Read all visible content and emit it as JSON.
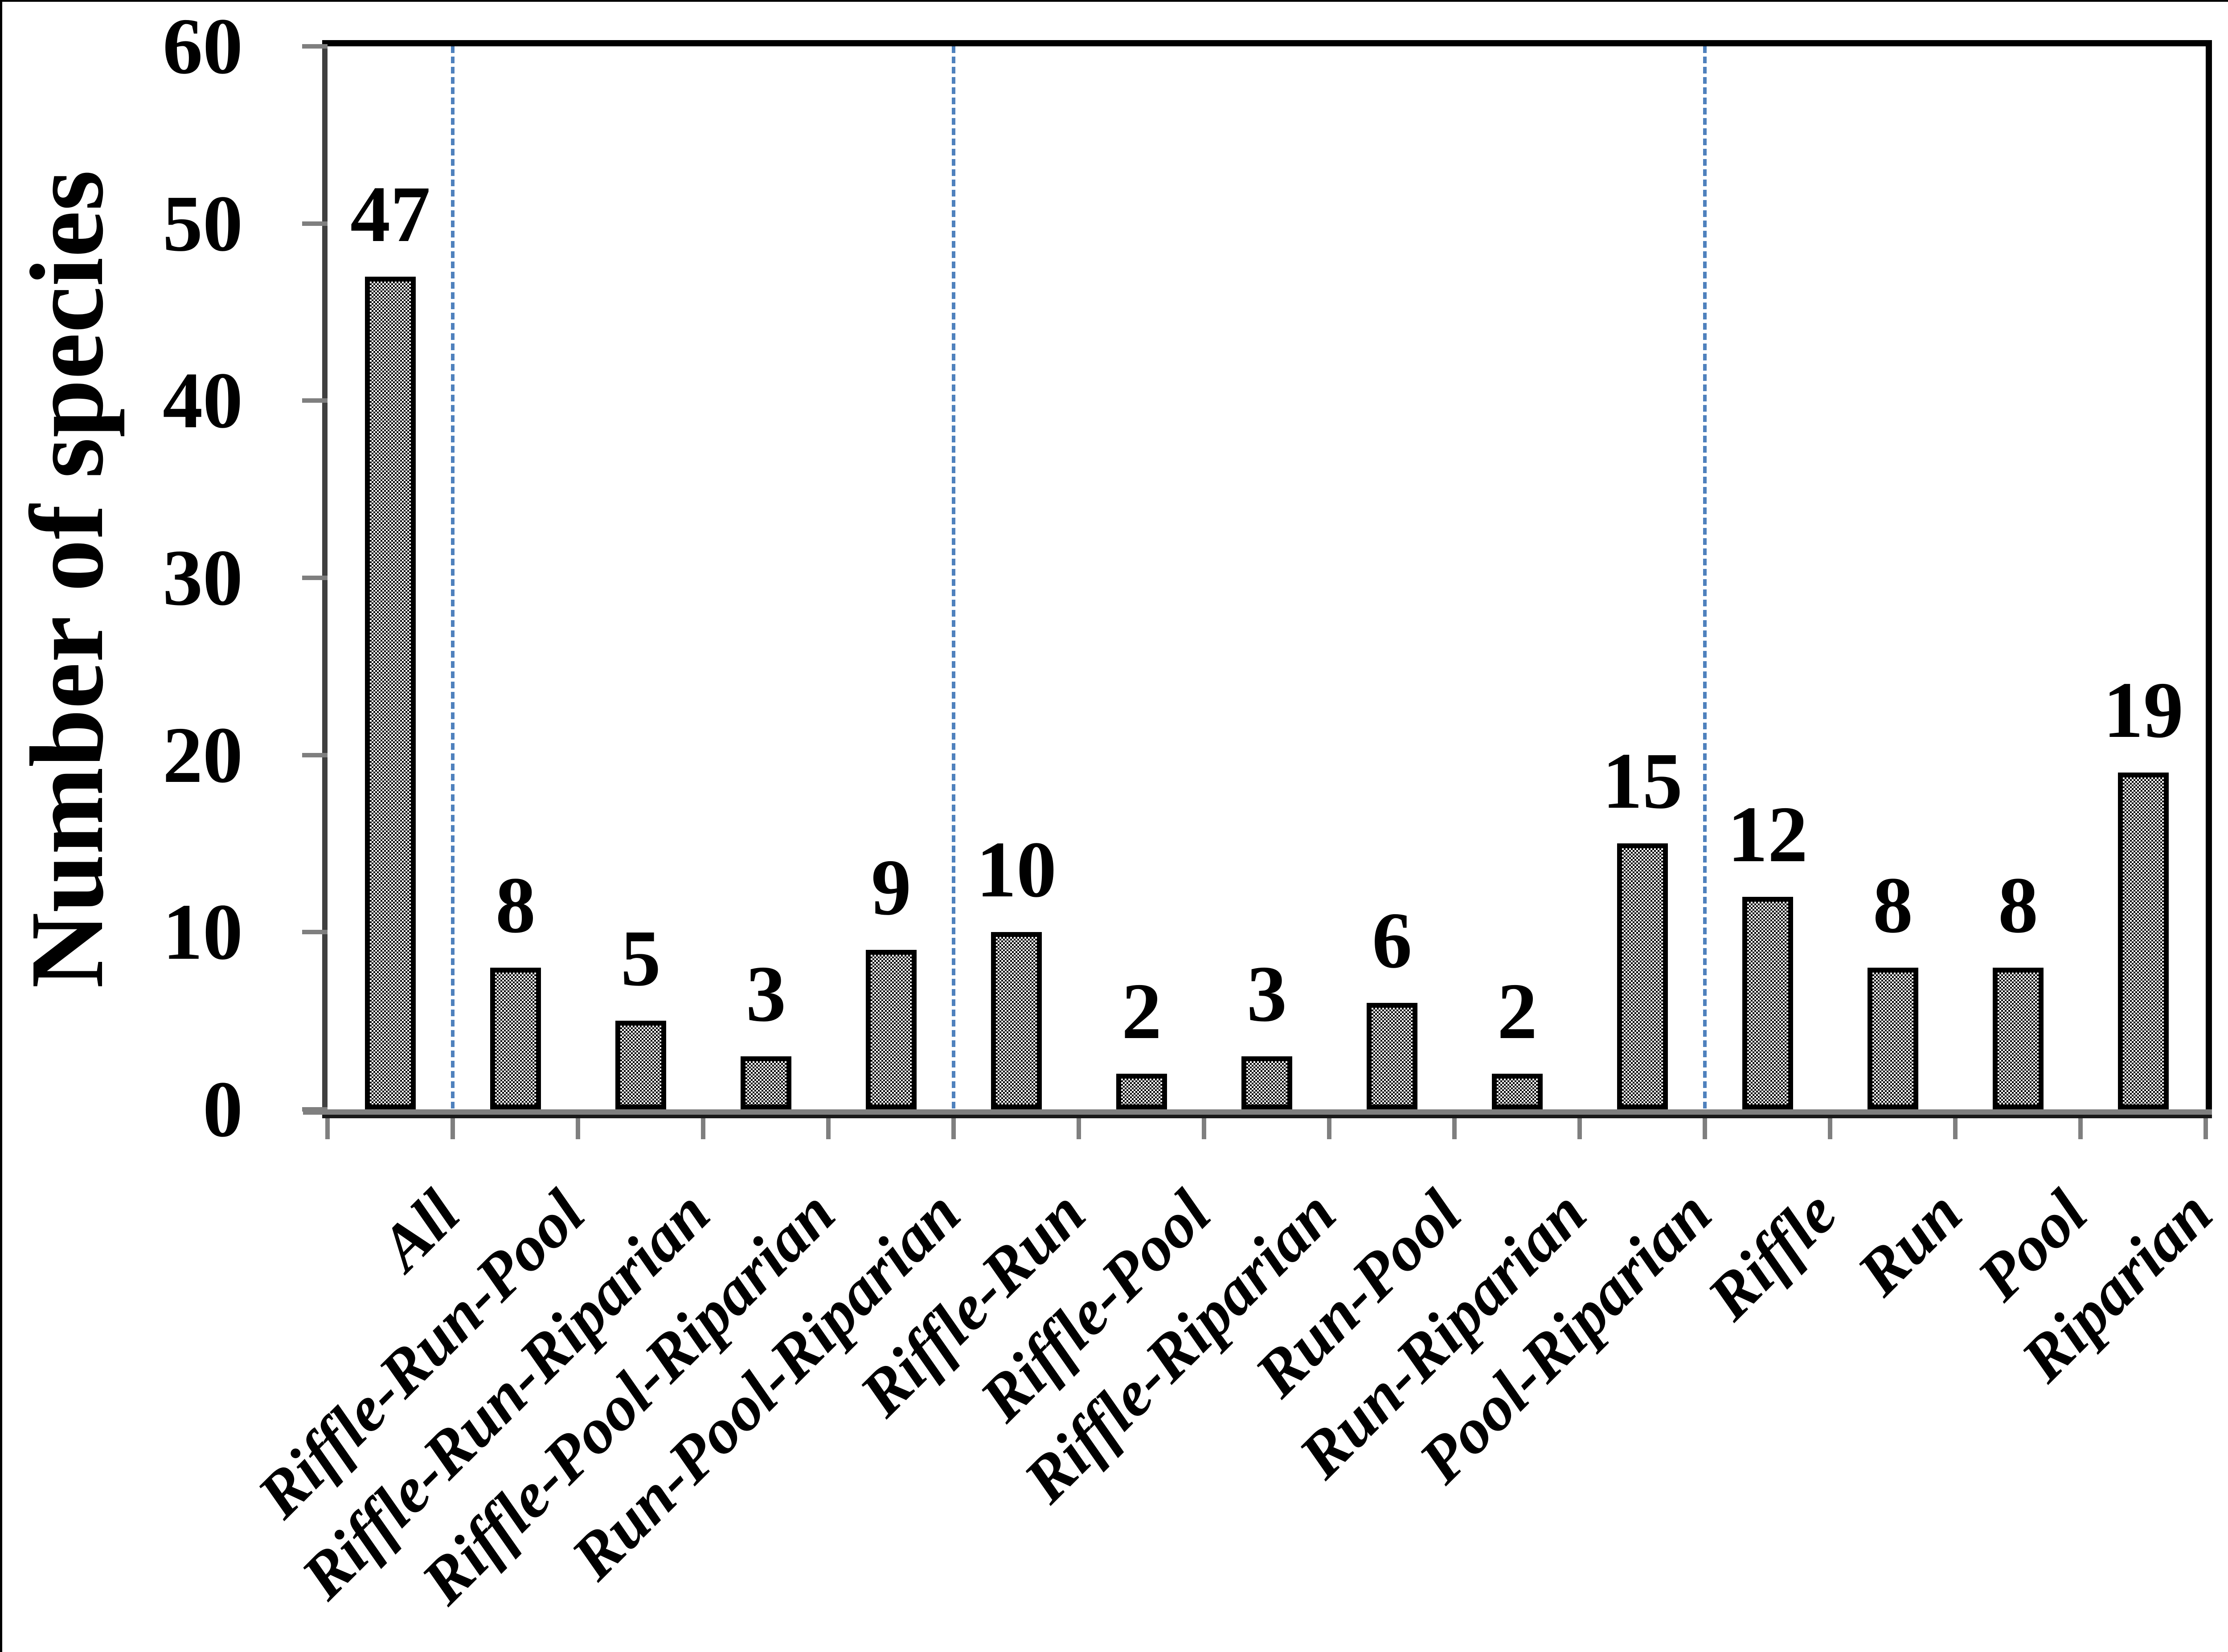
{
  "figure": {
    "background": "#ffffff",
    "frame_top_color": "#000000",
    "frame_left_color": "#000000"
  },
  "chart_data": {
    "type": "bar",
    "title": "",
    "xlabel": "",
    "ylabel": "Number of species",
    "ylim": [
      0,
      60
    ],
    "ytick_step": 10,
    "yticks": [
      "0",
      "10",
      "20",
      "30",
      "40",
      "50",
      "60"
    ],
    "grid": false,
    "legend": null,
    "categories": [
      "All",
      "Riffle-Run-Pool",
      "Riffle-Run-Riparian",
      "Riffle-Pool-Riparian",
      "Run-Pool-Riparian",
      "Riffle-Run",
      "Riffle-Pool",
      "Riffle-Riparian",
      "Run-Pool",
      "Run-Riparian",
      "Pool-Riparian",
      "Riffle",
      "Run",
      "Pool",
      "Riparian"
    ],
    "values": [
      47,
      8,
      5,
      3,
      9,
      10,
      2,
      3,
      6,
      2,
      15,
      12,
      8,
      8,
      19
    ],
    "bar_labels": [
      "47",
      "8",
      "5",
      "3",
      "9",
      "10",
      "2",
      "3",
      "6",
      "2",
      "15",
      "12",
      "8",
      "8",
      "19"
    ],
    "separators_after_category_index": [
      0,
      4,
      10
    ],
    "colors": {
      "bar_fill_texture": [
        "#000000",
        "#ffffff"
      ],
      "bar_border": "#000000",
      "separator_line": "#4f81bd",
      "axis_line": "#7f7f7f",
      "axis_shadow": "#1a1a1a",
      "y_axis_line": "#404040",
      "tick": "#7f7f7f",
      "text": "#000000"
    }
  }
}
